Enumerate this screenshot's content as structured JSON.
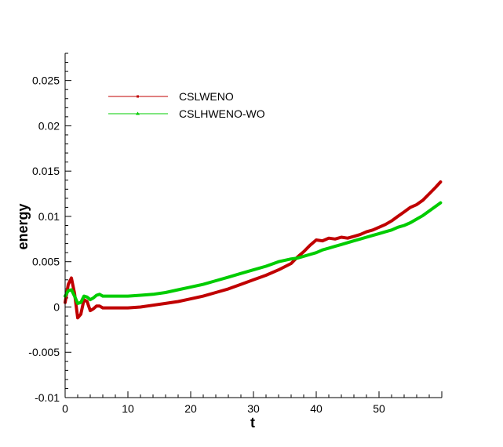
{
  "chart_data": {
    "type": "line",
    "title": "",
    "xlabel": "t",
    "ylabel": "energy",
    "xlim": [
      0,
      60
    ],
    "ylim": [
      -0.01,
      0.028
    ],
    "grid": false,
    "legend_position": "top-left",
    "x_ticks": [
      0,
      10,
      20,
      30,
      40,
      50
    ],
    "x_tick_labels": [
      "0",
      "10",
      "20",
      "30",
      "40",
      "50"
    ],
    "y_ticks": [
      -0.01,
      -0.005,
      0,
      0.005,
      0.01,
      0.015,
      0.02,
      0.025
    ],
    "y_tick_labels": [
      "-0.01",
      "-0.005",
      "0",
      "0.005",
      "0.01",
      "0.015",
      "0.02",
      "0.025"
    ],
    "series": [
      {
        "name": "CSLWENO",
        "color": "#c00000",
        "x": [
          0,
          0.5,
          1,
          1.5,
          2,
          2.5,
          3,
          3.5,
          4,
          4.5,
          5,
          5.5,
          6,
          7,
          8,
          9,
          10,
          12,
          14,
          16,
          18,
          20,
          22,
          24,
          26,
          28,
          30,
          32,
          34,
          36,
          37,
          38,
          39,
          40,
          41,
          42,
          43,
          44,
          45,
          46,
          47,
          48,
          49,
          50,
          51,
          52,
          53,
          54,
          55,
          56,
          57,
          58,
          59,
          60
        ],
        "values": [
          0.0005,
          0.0025,
          0.0032,
          0.0015,
          -0.0012,
          -0.0008,
          0.0008,
          0.0006,
          -0.0004,
          -0.0002,
          0.0001,
          0.0001,
          -0.0001,
          -0.0001,
          -0.0001,
          -0.0001,
          -0.0001,
          0.0,
          0.0002,
          0.0004,
          0.0006,
          0.0009,
          0.0012,
          0.0016,
          0.002,
          0.0025,
          0.003,
          0.0035,
          0.0041,
          0.0048,
          0.0055,
          0.0061,
          0.0068,
          0.0074,
          0.0073,
          0.0076,
          0.0075,
          0.0077,
          0.0076,
          0.0078,
          0.008,
          0.0083,
          0.0085,
          0.0088,
          0.0091,
          0.0095,
          0.01,
          0.0105,
          0.011,
          0.0113,
          0.0118,
          0.0125,
          0.0132,
          0.0138
        ]
      },
      {
        "name": "CSLHWENO-WO",
        "color": "#00cc00",
        "x": [
          0,
          0.5,
          1,
          1.5,
          2,
          2.5,
          3,
          3.5,
          4,
          4.5,
          5,
          5.5,
          6,
          7,
          8,
          9,
          10,
          12,
          14,
          16,
          18,
          20,
          22,
          24,
          26,
          28,
          30,
          32,
          34,
          36,
          37,
          38,
          39,
          40,
          41,
          42,
          43,
          44,
          45,
          46,
          47,
          48,
          49,
          50,
          51,
          52,
          53,
          54,
          55,
          56,
          57,
          58,
          59,
          60
        ],
        "values": [
          0.0012,
          0.0018,
          0.0019,
          0.0012,
          0.0004,
          0.0005,
          0.0012,
          0.0011,
          0.0008,
          0.001,
          0.0013,
          0.0014,
          0.0012,
          0.0012,
          0.0012,
          0.0012,
          0.0012,
          0.0013,
          0.0014,
          0.0016,
          0.0019,
          0.0022,
          0.0025,
          0.0029,
          0.0033,
          0.0037,
          0.0041,
          0.0045,
          0.005,
          0.0053,
          0.0054,
          0.0056,
          0.0058,
          0.006,
          0.0063,
          0.0065,
          0.0067,
          0.0069,
          0.0071,
          0.0073,
          0.0075,
          0.0077,
          0.0079,
          0.0081,
          0.0083,
          0.0085,
          0.0088,
          0.009,
          0.0093,
          0.0097,
          0.0101,
          0.0106,
          0.0111,
          0.0115
        ]
      }
    ]
  }
}
